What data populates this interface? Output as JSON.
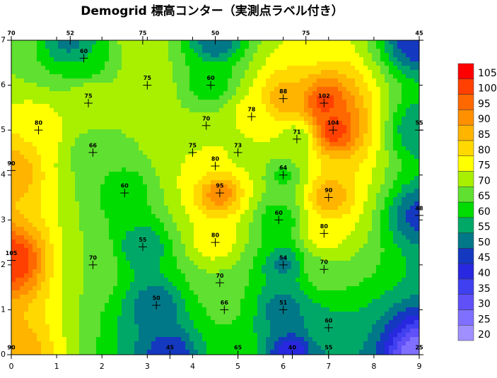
{
  "chart_data": {
    "type": "contour",
    "title": "Demogrid 標高コンター（実測点ラベル付き）",
    "xlim": [
      0,
      9
    ],
    "ylim": [
      0,
      7
    ],
    "xticks": [
      0,
      1,
      2,
      3,
      4,
      5,
      6,
      7,
      8,
      9
    ],
    "yticks": [
      0,
      1,
      2,
      3,
      4,
      5,
      6,
      7
    ],
    "x": [
      0,
      1.3,
      2.9,
      4.5,
      6.5,
      9,
      1.6,
      3,
      4.4,
      1.7,
      0.6,
      4.3,
      5.3,
      6,
      6.9,
      7.1,
      6.3,
      9,
      1.8,
      4,
      5,
      4.5,
      0,
      6,
      2.5,
      4.6,
      7,
      9,
      5.9,
      6.9,
      4.5,
      2.9,
      0,
      1.8,
      6,
      6.9,
      4.6,
      3.2,
      4.7,
      6,
      7,
      0,
      3.5,
      5,
      6.2,
      7,
      9
    ],
    "y": [
      7,
      7,
      7,
      7,
      7,
      7,
      6.6,
      6,
      6,
      5.6,
      5,
      5.1,
      5.3,
      5.7,
      5.6,
      5,
      4.8,
      5,
      4.5,
      4.5,
      4.5,
      4.2,
      4.1,
      4,
      3.6,
      3.6,
      3.5,
      3.1,
      3,
      2.7,
      2.5,
      2.4,
      2.1,
      2,
      2,
      1.9,
      1.6,
      1.1,
      1,
      1,
      0.6,
      0,
      0,
      0,
      0,
      0,
      0
    ],
    "values": [
      70,
      52,
      75,
      50,
      75,
      45,
      60,
      75,
      60,
      75,
      80,
      70,
      78,
      88,
      102,
      104,
      71,
      55,
      66,
      75,
      73,
      80,
      90,
      64,
      60,
      95,
      90,
      48,
      60,
      80,
      80,
      55,
      105,
      70,
      54,
      70,
      70,
      50,
      66,
      51,
      60,
      90,
      45,
      65,
      40,
      55,
      25
    ],
    "levels": [
      20,
      25,
      30,
      35,
      40,
      45,
      50,
      55,
      60,
      65,
      70,
      75,
      80,
      85,
      90,
      95,
      100,
      105
    ],
    "colors": [
      "#a090ff",
      "#8070ff",
      "#6050f8",
      "#4040f0",
      "#2828e0",
      "#1438c0",
      "#007888",
      "#00a868",
      "#00dc00",
      "#60e030",
      "#a8f000",
      "#ffff00",
      "#ffd800",
      "#ffb400",
      "#ff9000",
      "#ff6800",
      "#ff4000",
      "#ff0000"
    ]
  }
}
